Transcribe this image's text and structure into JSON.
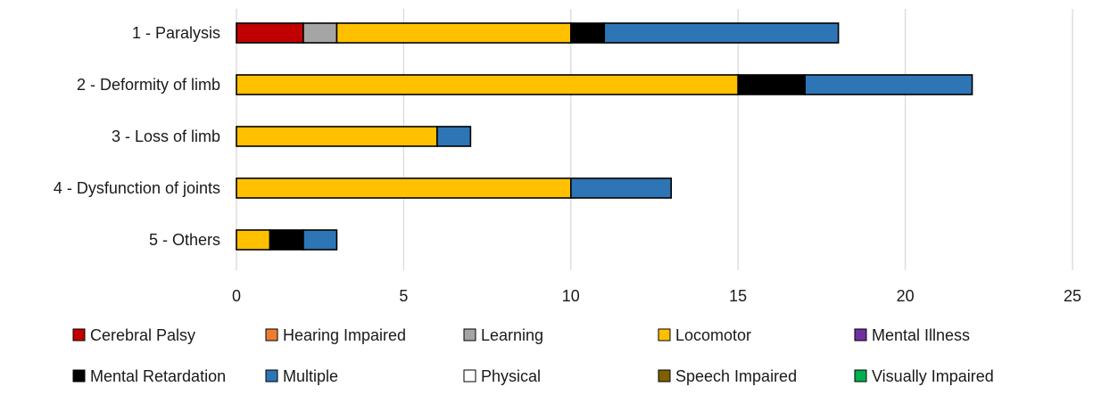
{
  "chart_data": {
    "type": "bar",
    "orientation": "horizontal",
    "stacked": true,
    "categories": [
      "1 - Paralysis",
      "2 - Deformity of limb",
      "3 - Loss of limb",
      "4 - Dysfunction of joints",
      "5 - Others"
    ],
    "xlim": [
      0,
      25
    ],
    "xticks": [
      0,
      5,
      10,
      15,
      20,
      25
    ],
    "grid": true,
    "legend_position": "bottom",
    "series": [
      {
        "name": "Cerebral Palsy",
        "color": "#c00000",
        "values": [
          2,
          0,
          0,
          0,
          0
        ]
      },
      {
        "name": "Hearing Impaired",
        "color": "#ed7d31",
        "values": [
          0,
          0,
          0,
          0,
          0
        ]
      },
      {
        "name": "Learning",
        "color": "#a5a5a5",
        "values": [
          1,
          0,
          0,
          0,
          0
        ]
      },
      {
        "name": "Locomotor",
        "color": "#ffc000",
        "values": [
          7,
          15,
          6,
          10,
          1
        ]
      },
      {
        "name": "Mental Illness",
        "color": "#7030a0",
        "values": [
          0,
          0,
          0,
          0,
          0
        ]
      },
      {
        "name": "Mental Retardation",
        "color": "#000000",
        "values": [
          1,
          2,
          0,
          0,
          1
        ]
      },
      {
        "name": "Multiple",
        "color": "#2e75b6",
        "values": [
          7,
          5,
          1,
          3,
          1
        ]
      },
      {
        "name": "Physical",
        "color": "#ffffff",
        "values": [
          0,
          0,
          0,
          0,
          0
        ]
      },
      {
        "name": "Speech Impaired",
        "color": "#7f6000",
        "values": [
          0,
          0,
          0,
          0,
          0
        ]
      },
      {
        "name": "Visually Impaired",
        "color": "#00b050",
        "values": [
          0,
          0,
          0,
          0,
          0
        ]
      }
    ]
  }
}
